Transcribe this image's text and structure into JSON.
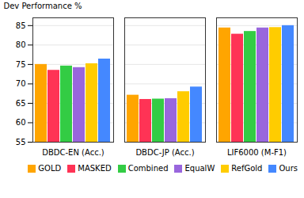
{
  "chart_data": {
    "type": "bar",
    "categories": [
      "DBDC-EN (Acc.)",
      "DBDC-JP (Acc.)",
      "LIF6000 (M-F1)"
    ],
    "series": [
      {
        "name": "GOLD",
        "color": "#FFA500",
        "values": [
          75.0,
          67.1,
          84.4
        ]
      },
      {
        "name": "MASKED",
        "color": "#FF3355",
        "values": [
          73.5,
          66.0,
          82.8
        ]
      },
      {
        "name": "Combined",
        "color": "#33CC44",
        "values": [
          74.6,
          66.1,
          83.5
        ]
      },
      {
        "name": "EqualW",
        "color": "#9966DD",
        "values": [
          74.2,
          66.2,
          84.4
        ]
      },
      {
        "name": "RefGold",
        "color": "#FFCC00",
        "values": [
          75.2,
          68.0,
          84.5
        ]
      },
      {
        "name": "Ours",
        "color": "#4488FF",
        "values": [
          76.4,
          69.2,
          85.0
        ]
      }
    ],
    "ylabel": "Dev Performance %",
    "ylim": [
      55,
      87
    ],
    "yticks": [
      55,
      60,
      65,
      70,
      75,
      80,
      85
    ],
    "grid": true,
    "legend": "lower right"
  }
}
